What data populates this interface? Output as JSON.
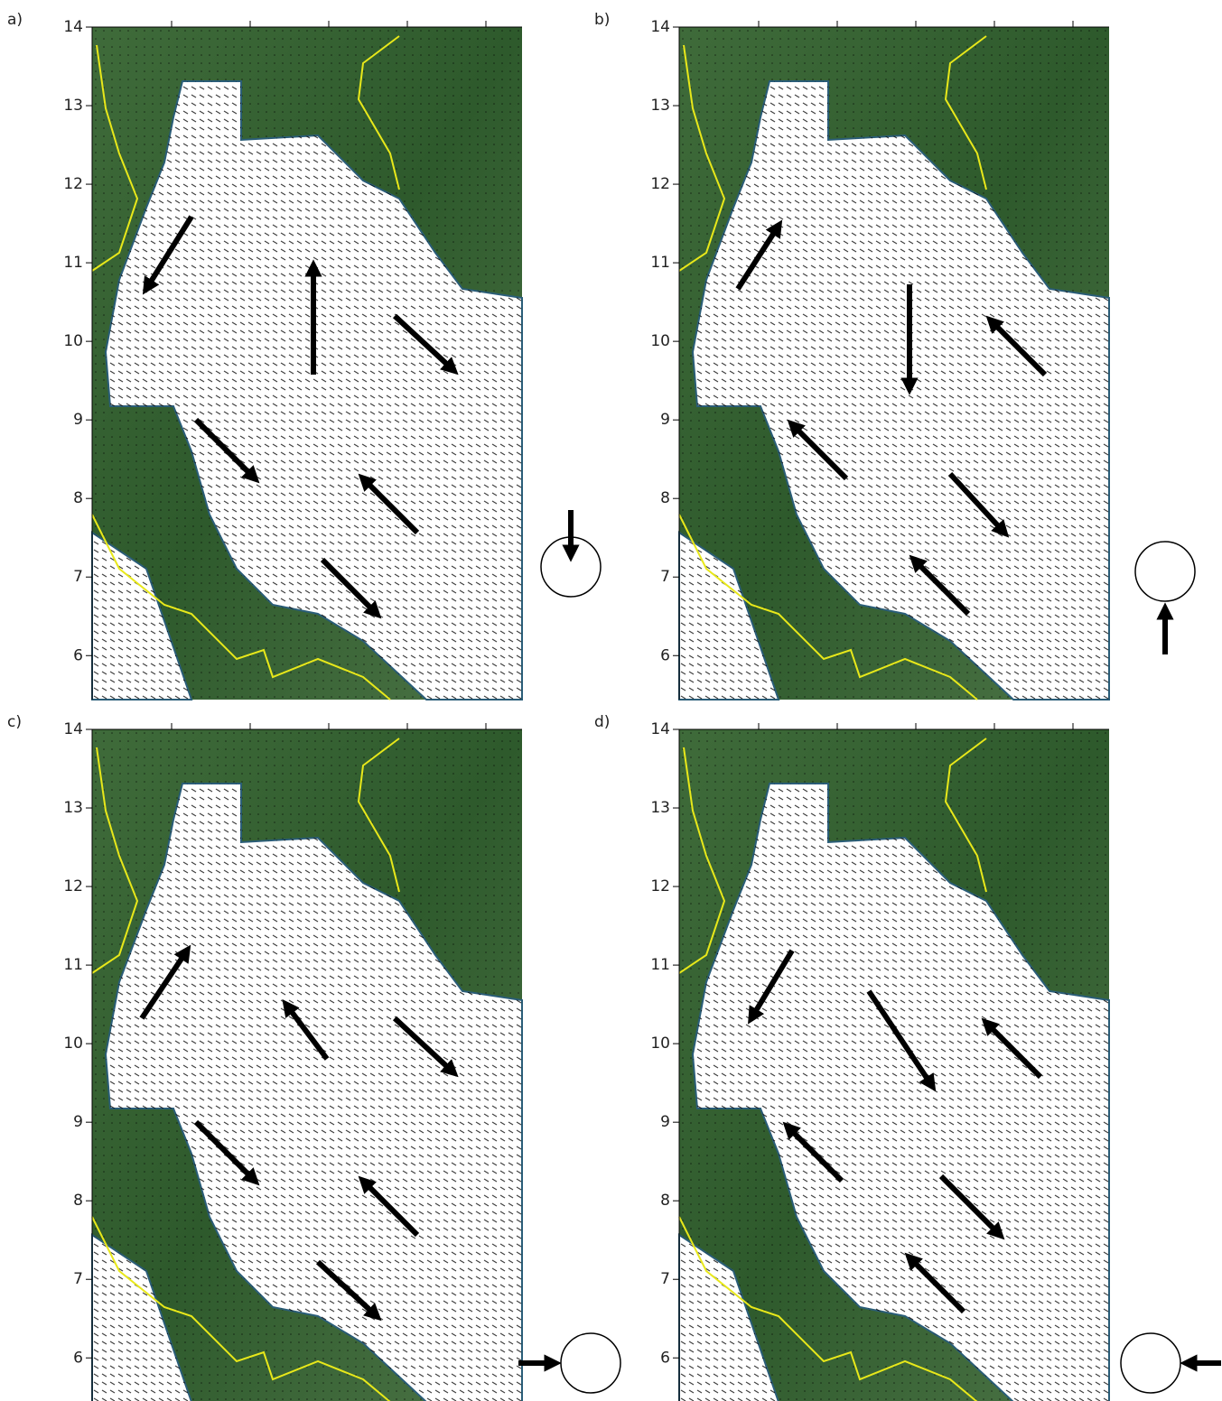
{
  "panels": [
    {
      "label": "a)",
      "ylim": [
        5.44,
        14
      ],
      "yticks": [
        6,
        7,
        8,
        9,
        10,
        11,
        12,
        13,
        14
      ]
    },
    {
      "label": "b)",
      "ylim": [
        5.44,
        14
      ],
      "yticks": [
        6,
        7,
        8,
        9,
        10,
        11,
        12,
        13,
        14
      ]
    },
    {
      "label": "c)",
      "ylim": [
        5.44,
        14
      ],
      "yticks": [
        6,
        7,
        8,
        9,
        10,
        11,
        12,
        13,
        14
      ]
    },
    {
      "label": "d)",
      "ylim": [
        5.44,
        14
      ],
      "yticks": [
        6,
        7,
        8,
        9,
        10,
        11,
        12,
        13,
        14
      ]
    }
  ]
}
